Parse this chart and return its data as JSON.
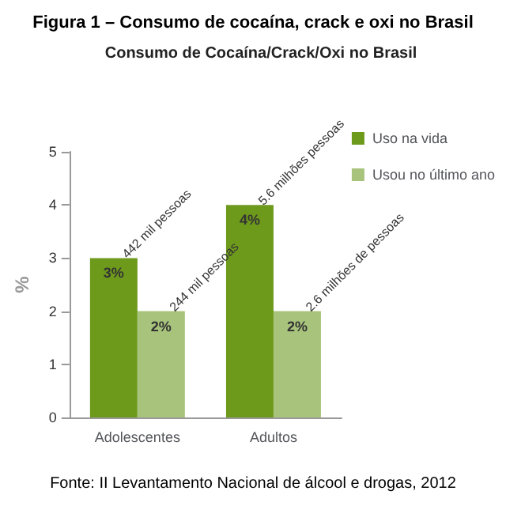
{
  "chart_data": {
    "type": "bar",
    "title": "Figura 1 – Consumo de cocaína, crack e oxi no Brasil",
    "subtitle": "Consumo de Cocaína/Crack/Oxi no Brasil",
    "ylabel": "%",
    "categories": [
      "Adolescentes",
      "Adultos"
    ],
    "series": [
      {
        "name": "Uso na vida",
        "color": "#6e9a1c",
        "values": [
          3,
          4
        ],
        "value_labels": [
          "3%",
          "4%"
        ]
      },
      {
        "name": "Usou no último ano",
        "color": "#a8c47c",
        "values": [
          2,
          2
        ],
        "value_labels": [
          "2%",
          "2%"
        ]
      }
    ],
    "ylim": [
      0,
      5
    ],
    "yticks": [
      0,
      1,
      2,
      3,
      4,
      5
    ],
    "grid": false,
    "legend": "top right",
    "annotations": [
      {
        "text": "442 mil pessoas",
        "x": "Adolescentes",
        "y": 3
      },
      {
        "text": "244 mil pessoas",
        "x": "Adolescentes",
        "y": 2
      },
      {
        "text": "5.6 milhões pessoas",
        "x": "Adultos",
        "y": 4
      },
      {
        "text": "2.6 milhões de pessoas",
        "x": "Adultos",
        "y": 2
      },
      "Fonte: II Levantamento Nacional de álcool e drogas, 2012"
    ]
  }
}
